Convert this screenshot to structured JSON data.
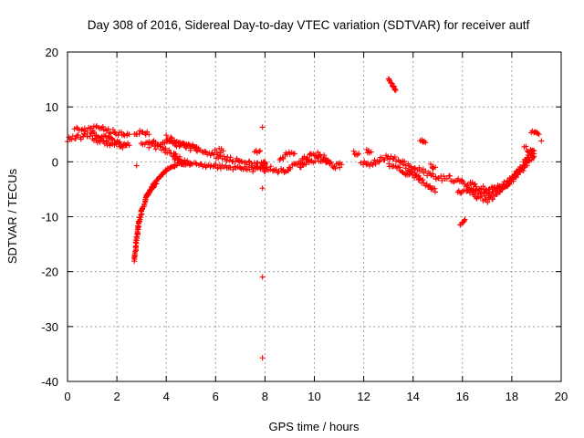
{
  "chart_data": {
    "type": "scatter",
    "title": "Day 308 of 2016, Sidereal Day-to-day VTEC variation (SDTVAR) for receiver autf",
    "xlabel": "GPS time / hours",
    "ylabel": "SDTVAR / TECUs",
    "xlim": [
      0,
      20
    ],
    "ylim": [
      -40,
      20
    ],
    "xticks": [
      0,
      2,
      4,
      6,
      8,
      10,
      12,
      14,
      16,
      18,
      20
    ],
    "yticks": [
      -40,
      -30,
      -20,
      -10,
      0,
      10,
      20
    ],
    "grid": true,
    "marker": "+",
    "color": "#ff0000",
    "series": [
      {
        "name": "SDTVAR",
        "trend_segments": [
          [
            [
              0.0,
              4.0
            ],
            [
              0.5,
              4.5
            ],
            [
              1.0,
              5.0
            ],
            [
              1.5,
              4.5
            ],
            [
              2.0,
              3.5
            ],
            [
              2.4,
              3.0
            ]
          ],
          [
            [
              0.3,
              5.8
            ],
            [
              0.8,
              6.0
            ],
            [
              1.2,
              6.2
            ],
            [
              1.6,
              5.8
            ],
            [
              2.1,
              5.2
            ],
            [
              2.5,
              5.0
            ]
          ],
          [
            [
              1.0,
              4.0
            ],
            [
              1.5,
              3.5
            ],
            [
              2.0,
              3.0
            ],
            [
              2.5,
              3.0
            ]
          ],
          [
            [
              2.7,
              5.5
            ],
            [
              3.0,
              5.2
            ],
            [
              3.3,
              5.0
            ]
          ],
          [
            [
              3.0,
              3.5
            ],
            [
              3.5,
              3.5
            ],
            [
              4.0,
              3.6
            ],
            [
              4.5,
              3.2
            ],
            [
              5.0,
              2.8
            ],
            [
              5.5,
              2.0
            ],
            [
              6.0,
              1.0
            ],
            [
              6.5,
              0.5
            ],
            [
              7.0,
              0.0
            ],
            [
              7.5,
              -0.5
            ],
            [
              7.9,
              -0.5
            ]
          ],
          [
            [
              3.3,
              3.0
            ],
            [
              3.8,
              2.5
            ],
            [
              4.2,
              1.5
            ],
            [
              4.6,
              0.5
            ],
            [
              5.0,
              -0.5
            ],
            [
              5.5,
              -0.5
            ],
            [
              6.0,
              -0.8
            ],
            [
              6.5,
              -1.2
            ],
            [
              7.0,
              -1.0
            ],
            [
              7.5,
              -1.5
            ],
            [
              8.0,
              -1.0
            ]
          ],
          [
            [
              4.0,
              4.5
            ],
            [
              4.5,
              3.5
            ],
            [
              5.0,
              2.5
            ],
            [
              5.3,
              2.5
            ]
          ],
          [
            [
              4.3,
              1.0
            ],
            [
              4.7,
              -0.5
            ]
          ],
          [
            [
              6.0,
              2.2
            ],
            [
              6.3,
              2.0
            ]
          ],
          [
            [
              7.6,
              2.0
            ],
            [
              7.8,
              2.0
            ]
          ],
          [
            [
              8.1,
              -1.0
            ],
            [
              8.4,
              -1.5
            ],
            [
              8.8,
              -1.8
            ],
            [
              9.2,
              -0.5
            ],
            [
              9.6,
              0.5
            ],
            [
              10.0,
              1.5
            ],
            [
              10.4,
              0.8
            ],
            [
              10.8,
              -1.0
            ],
            [
              11.1,
              -0.5
            ]
          ],
          [
            [
              8.6,
              0.5
            ],
            [
              8.9,
              1.5
            ],
            [
              9.2,
              1.5
            ]
          ],
          [
            [
              9.4,
              -1.0
            ],
            [
              9.8,
              0.0
            ],
            [
              10.2,
              0.5
            ],
            [
              10.6,
              0.0
            ]
          ],
          [
            [
              11.6,
              1.5
            ],
            [
              11.8,
              1.5
            ]
          ],
          [
            [
              12.1,
              1.8
            ],
            [
              12.3,
              1.8
            ]
          ],
          [
            [
              11.9,
              0.0
            ],
            [
              12.3,
              -0.5
            ],
            [
              12.7,
              0.5
            ],
            [
              13.0,
              1.0
            ],
            [
              13.5,
              0.0
            ],
            [
              14.0,
              -1.0
            ],
            [
              14.5,
              -2.0
            ],
            [
              15.0,
              -3.0
            ],
            [
              15.5,
              -3.0
            ],
            [
              16.0,
              -3.5
            ],
            [
              16.5,
              -5.5
            ],
            [
              17.0,
              -6.0
            ],
            [
              17.5,
              -4.5
            ],
            [
              18.0,
              -3.0
            ],
            [
              18.5,
              -1.0
            ],
            [
              18.9,
              1.5
            ]
          ],
          [
            [
              13.0,
              -0.5
            ],
            [
              13.5,
              -1.5
            ],
            [
              14.0,
              -2.5
            ],
            [
              14.5,
              -4.0
            ],
            [
              14.9,
              -5.5
            ]
          ],
          [
            [
              13.7,
              -1.5
            ],
            [
              14.0,
              -2.0
            ],
            [
              14.3,
              -3.0
            ]
          ],
          [
            [
              14.7,
              -0.5
            ],
            [
              14.9,
              -1.0
            ]
          ],
          [
            [
              15.8,
              -5.5
            ],
            [
              16.2,
              -5.0
            ],
            [
              16.6,
              -6.5
            ],
            [
              17.0,
              -7.0
            ],
            [
              17.4,
              -6.0
            ],
            [
              17.8,
              -4.5
            ],
            [
              18.2,
              -2.5
            ],
            [
              18.6,
              0.0
            ],
            [
              18.9,
              1.0
            ]
          ],
          [
            [
              16.3,
              -4.0
            ],
            [
              16.6,
              -4.5
            ],
            [
              17.0,
              -5.0
            ],
            [
              17.4,
              -5.0
            ],
            [
              17.8,
              -4.0
            ],
            [
              18.2,
              -2.0
            ],
            [
              18.6,
              0.5
            ],
            [
              18.9,
              2.0
            ]
          ],
          [
            [
              18.5,
              2.5
            ],
            [
              18.8,
              2.0
            ]
          ]
        ],
        "dense_segments": [
          [
            [
              2.7,
              -18.0
            ],
            [
              2.8,
              -14.0
            ],
            [
              2.9,
              -11.0
            ],
            [
              3.0,
              -9.0
            ],
            [
              3.2,
              -6.5
            ],
            [
              3.5,
              -4.0
            ],
            [
              4.0,
              -1.5
            ],
            [
              4.5,
              -0.3
            ],
            [
              5.0,
              -0.4
            ]
          ],
          [
            [
              3.2,
              -6.0
            ],
            [
              3.4,
              -5.0
            ],
            [
              3.6,
              -4.0
            ]
          ],
          [
            [
              13.0,
              15.0
            ],
            [
              13.3,
              13.0
            ]
          ],
          [
            [
              14.3,
              4.0
            ],
            [
              14.5,
              3.5
            ]
          ],
          [
            [
              15.9,
              -11.5
            ],
            [
              16.1,
              -10.5
            ]
          ],
          [
            [
              18.8,
              5.5
            ],
            [
              19.1,
              5.0
            ]
          ],
          [
            [
              7.9,
              -0.6
            ],
            [
              8.0,
              0.1
            ],
            [
              8.0,
              -1.8
            ]
          ]
        ],
        "outliers": [
          [
            7.9,
            6.3
          ],
          [
            7.9,
            -4.8
          ],
          [
            7.9,
            -21.0
          ],
          [
            7.9,
            -35.7
          ],
          [
            2.8,
            -0.7
          ],
          [
            19.2,
            3.8
          ]
        ]
      }
    ]
  }
}
